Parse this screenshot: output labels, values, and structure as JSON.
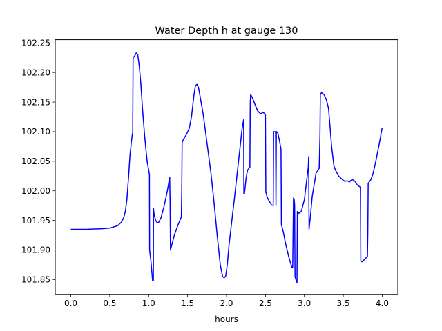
{
  "chart_data": {
    "type": "line",
    "title": "Water Depth h at gauge 130",
    "xlabel": "hours",
    "ylabel": "",
    "xlim": [
      -0.2,
      4.2
    ],
    "ylim": [
      101.8245,
      102.2555
    ],
    "xticks": [
      0.0,
      0.5,
      1.0,
      1.5,
      2.0,
      2.5,
      3.0,
      3.5,
      4.0
    ],
    "xtick_labels": [
      "0.0",
      "0.5",
      "1.0",
      "1.5",
      "2.0",
      "2.5",
      "3.0",
      "3.5",
      "4.0"
    ],
    "yticks": [
      101.85,
      101.9,
      101.95,
      102.0,
      102.05,
      102.1,
      102.15,
      102.2,
      102.25
    ],
    "ytick_labels": [
      "101.85",
      "101.90",
      "101.95",
      "102.00",
      "102.05",
      "102.10",
      "102.15",
      "102.20",
      "102.25"
    ],
    "grid": false,
    "legend": "none",
    "series": [
      {
        "color": "#0000ff",
        "x": [
          0.0,
          0.2,
          0.4,
          0.5,
          0.6,
          0.65,
          0.68,
          0.7,
          0.72,
          0.74,
          0.76,
          0.78,
          0.79,
          0.795,
          0.8,
          0.82,
          0.84,
          0.86,
          0.88,
          0.9,
          0.92,
          0.95,
          0.98,
          1.0,
          1.01,
          1.012,
          1.03,
          1.05,
          1.06,
          1.062,
          1.07,
          1.09,
          1.11,
          1.13,
          1.16,
          1.2,
          1.24,
          1.27,
          1.275,
          1.28,
          1.3,
          1.33,
          1.37,
          1.42,
          1.425,
          1.43,
          1.45,
          1.48,
          1.52,
          1.55,
          1.58,
          1.6,
          1.62,
          1.64,
          1.66,
          1.68,
          1.7,
          1.73,
          1.76,
          1.8,
          1.84,
          1.88,
          1.92,
          1.95,
          1.97,
          1.99,
          2.01,
          2.03,
          2.06,
          2.1,
          2.15,
          2.2,
          2.22,
          2.223,
          2.23,
          2.25,
          2.27,
          2.3,
          2.305,
          2.31,
          2.33,
          2.36,
          2.4,
          2.44,
          2.47,
          2.5,
          2.505,
          2.52,
          2.55,
          2.58,
          2.6,
          2.605,
          2.63,
          2.635,
          2.64,
          2.645,
          2.66,
          2.68,
          2.7,
          2.705,
          2.73,
          2.76,
          2.8,
          2.84,
          2.85,
          2.86,
          2.87,
          2.875,
          2.88,
          2.9,
          2.905,
          2.91,
          2.93,
          2.96,
          3.0,
          3.05,
          3.055,
          3.06,
          3.08,
          3.1,
          3.15,
          3.19,
          3.2,
          3.205,
          3.22,
          3.25,
          3.28,
          3.31,
          3.33,
          3.35,
          3.38,
          3.4,
          3.44,
          3.48,
          3.52,
          3.55,
          3.58,
          3.6,
          3.62,
          3.65,
          3.68,
          3.72,
          3.725,
          3.74,
          3.78,
          3.81,
          3.815,
          3.82,
          3.85,
          3.88,
          3.91,
          3.94,
          3.97,
          3.99,
          4.0
        ],
        "y": [
          101.935,
          101.935,
          101.936,
          101.937,
          101.941,
          101.947,
          101.955,
          101.965,
          101.985,
          102.02,
          102.06,
          102.085,
          102.095,
          102.098,
          102.225,
          102.228,
          102.233,
          102.23,
          102.21,
          102.18,
          102.14,
          102.09,
          102.05,
          102.035,
          102.027,
          101.9,
          101.88,
          101.848,
          101.848,
          101.97,
          101.96,
          101.95,
          101.946,
          101.947,
          101.955,
          101.975,
          102.0,
          102.023,
          101.985,
          101.9,
          101.91,
          101.925,
          101.94,
          101.956,
          102.0,
          102.082,
          102.088,
          102.094,
          102.105,
          102.125,
          102.16,
          102.178,
          102.18,
          102.175,
          102.16,
          102.145,
          102.13,
          102.1,
          102.07,
          102.03,
          101.98,
          101.925,
          101.875,
          101.855,
          101.853,
          101.856,
          101.875,
          101.905,
          101.94,
          101.985,
          102.045,
          102.105,
          102.12,
          101.995,
          101.995,
          102.02,
          102.035,
          102.04,
          102.15,
          102.163,
          102.158,
          102.148,
          102.135,
          102.13,
          102.133,
          102.128,
          101.998,
          101.99,
          101.982,
          101.976,
          101.975,
          102.1,
          102.1,
          101.975,
          102.1,
          102.1,
          102.097,
          102.085,
          102.07,
          101.943,
          101.93,
          101.91,
          101.888,
          101.87,
          101.87,
          101.988,
          101.985,
          101.975,
          101.855,
          101.846,
          101.845,
          101.965,
          101.962,
          101.965,
          101.985,
          102.04,
          102.058,
          101.935,
          101.96,
          101.99,
          102.03,
          102.038,
          102.092,
          102.163,
          102.166,
          102.163,
          102.155,
          102.14,
          102.108,
          102.075,
          102.042,
          102.035,
          102.025,
          102.02,
          102.016,
          102.017,
          102.015,
          102.018,
          102.019,
          102.016,
          102.01,
          102.006,
          101.882,
          101.88,
          101.885,
          101.889,
          101.93,
          102.013,
          102.018,
          102.028,
          102.045,
          102.065,
          102.085,
          102.1,
          102.107
        ]
      }
    ]
  }
}
